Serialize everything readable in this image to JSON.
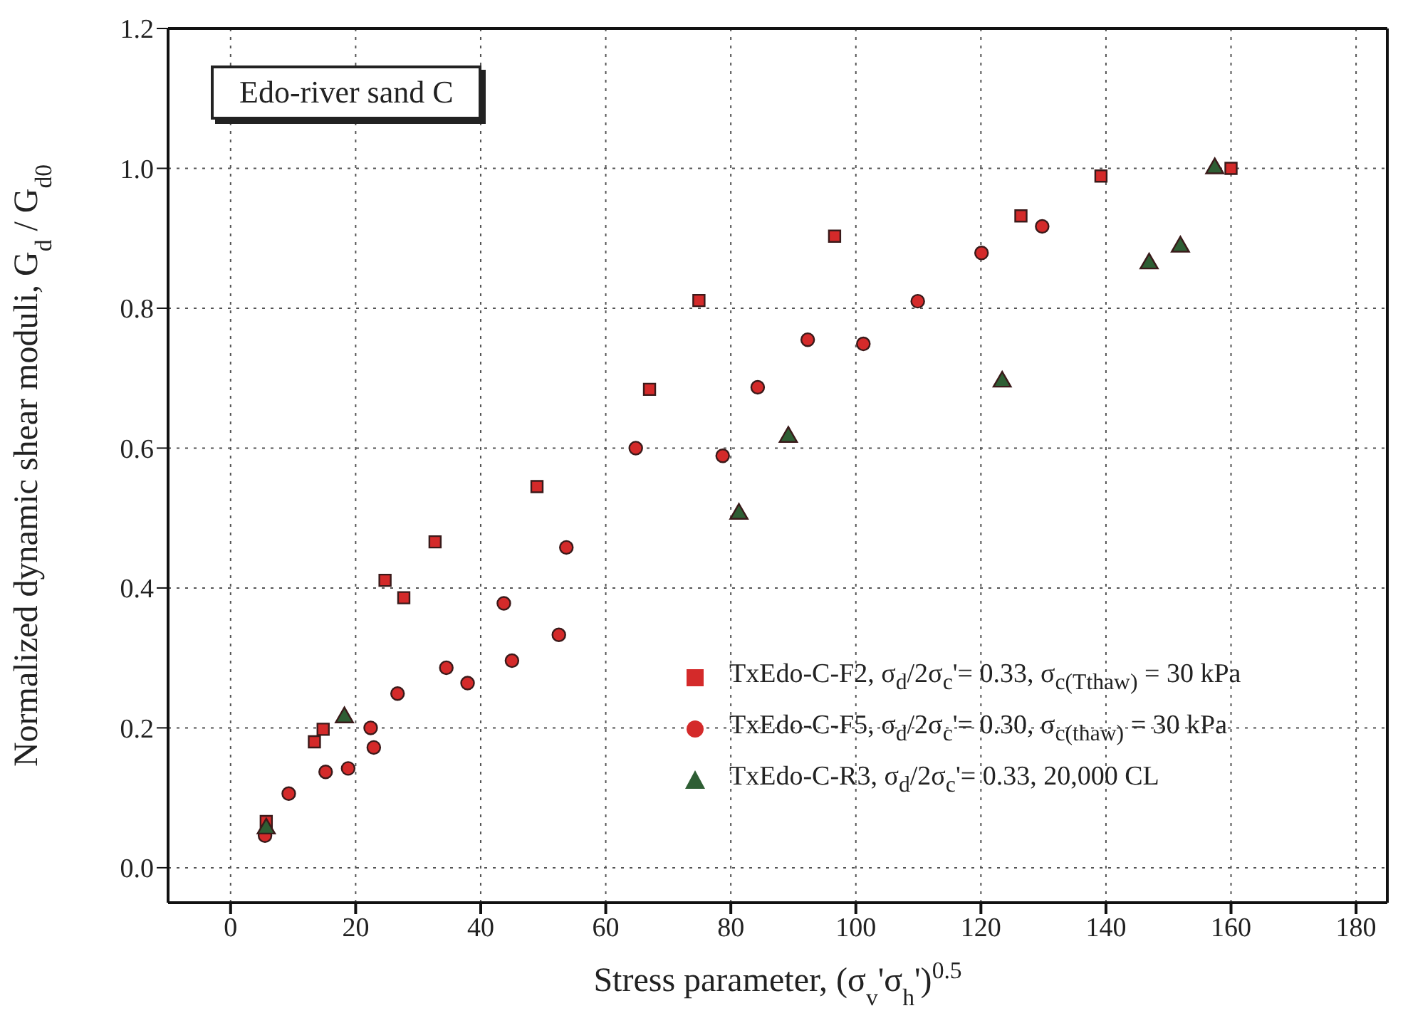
{
  "chart_data": {
    "type": "scatter",
    "xlabel": "Stress parameter, (σ$_{v}$'σ$_{h}$')$^{0.5}$",
    "ylabel": "Normalized dynamic shear moduli, G$_{d}$ / G$_{d0}$",
    "annotations": [
      "Edo-river sand C"
    ],
    "xlim": [
      -10,
      185
    ],
    "xticks": [
      0,
      20,
      40,
      60,
      80,
      100,
      120,
      140,
      160,
      180
    ],
    "ylim": [
      -0.05,
      1.2
    ],
    "yticks": [
      {
        "value": 0,
        "label": "0.0"
      },
      {
        "value": 0.2,
        "label": "0.2"
      },
      {
        "value": 0.4,
        "label": "0.4"
      },
      {
        "value": 0.6,
        "label": "0.6"
      },
      {
        "value": 0.8,
        "label": "0.8"
      },
      {
        "value": 1,
        "label": "1.0"
      },
      {
        "value": 1.2,
        "label": "1.2"
      }
    ],
    "grid": true,
    "legend": "bottom right",
    "series": [
      {
        "name": "TxEdo-C-F2, σ$_{d}$/2σ$_{c}$'= 0.33, σ$_{c(Tthaw)}$ = 30 kPa",
        "color": "#d42a2a",
        "marker": "square",
        "x": [
          5.7,
          13.4,
          14.8,
          24.7,
          27.7,
          32.7,
          49.0,
          67.0,
          74.9,
          96.6,
          126.4,
          139.2,
          160
        ],
        "values": [
          0.066,
          0.18,
          0.198,
          0.411,
          0.386,
          0.466,
          0.545,
          0.684,
          0.811,
          0.903,
          0.932,
          0.989,
          1.0
        ]
      },
      {
        "name": "TxEdo-C-F5, σ$_{d}$/2σ$_{c}$'= 0.30, σ$_{c(thaw)}$ = 30 kPa",
        "color": "#d42a2a",
        "marker": "circle",
        "x": [
          5.5,
          9.3,
          15.2,
          18.8,
          22.4,
          22.9,
          26.7,
          34.5,
          37.9,
          43.7,
          45.0,
          52.5,
          53.7,
          64.8,
          78.7,
          84.3,
          92.3,
          101.2,
          109.9,
          120.1,
          129.8
        ],
        "values": [
          0.046,
          0.106,
          0.137,
          0.142,
          0.2,
          0.172,
          0.249,
          0.286,
          0.264,
          0.378,
          0.296,
          0.333,
          0.458,
          0.6,
          0.589,
          0.687,
          0.755,
          0.749,
          0.81,
          0.879,
          0.917
        ]
      },
      {
        "name": "TxEdo-C-R3, σ$_{d}$/2σ$_{c}$'= 0.33, 20,000 CL",
        "color": "#2e5e34",
        "marker": "triangle",
        "x": [
          5.7,
          18.2,
          81.3,
          89.2,
          123.4,
          146.9,
          151.9,
          157.4
        ],
        "values": [
          0.056,
          0.215,
          0.506,
          0.616,
          0.695,
          0.864,
          0.888,
          1.0
        ]
      }
    ]
  }
}
